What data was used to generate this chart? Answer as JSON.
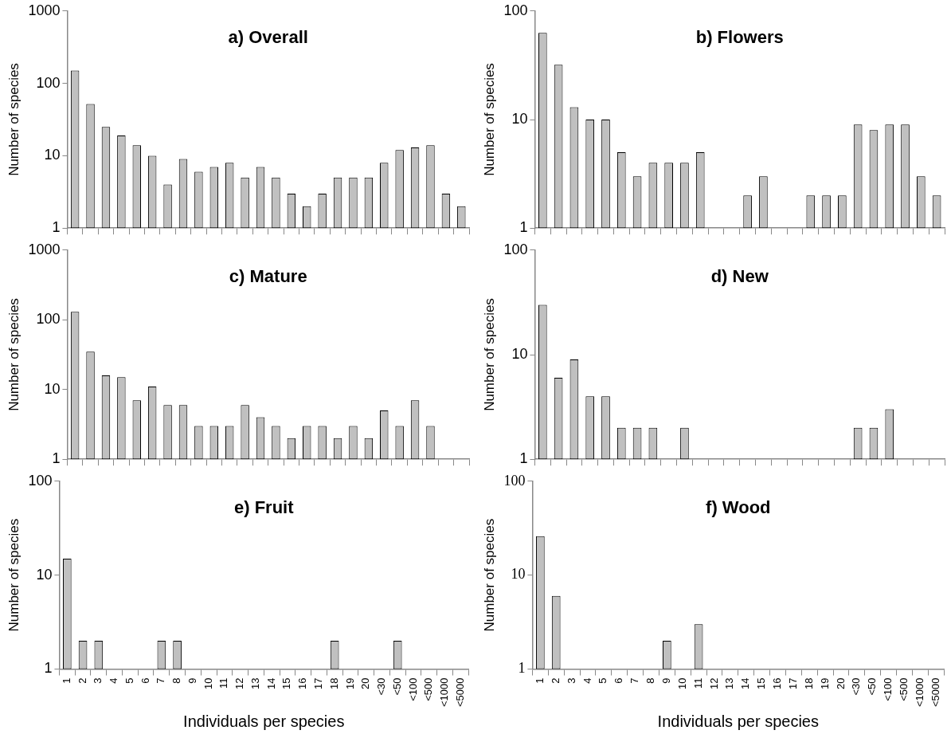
{
  "chart_data": [
    {
      "type": "bar",
      "title": "a) Overall",
      "ylabel": "Number of species",
      "categories": [
        null,
        null,
        null,
        null,
        null,
        null,
        null,
        null,
        null,
        null,
        null,
        null,
        null,
        null,
        null,
        null,
        null,
        null,
        null,
        null,
        null,
        null,
        null,
        null,
        null,
        null
      ],
      "values": [
        150,
        52,
        25,
        19,
        14,
        10,
        4,
        9,
        6,
        7,
        8,
        5,
        7,
        5,
        3,
        2,
        3,
        5,
        5,
        5,
        8,
        12,
        13,
        14,
        3,
        2
      ],
      "color": "#c0c0c0",
      "log": "y",
      "ylim": [
        1,
        1000
      ],
      "yticks": [
        1,
        10,
        100,
        1000
      ],
      "tick_labels": "y"
    },
    {
      "type": "bar",
      "title": "b) Flowers",
      "ylabel": "Number of species",
      "categories": [
        null,
        null,
        null,
        null,
        null,
        null,
        null,
        null,
        null,
        null,
        null,
        null,
        null,
        null,
        null,
        null,
        null,
        null,
        null,
        null,
        null,
        null,
        null,
        null,
        null,
        null
      ],
      "values": [
        63,
        32,
        13,
        10,
        10,
        5,
        3,
        4,
        4,
        4,
        5,
        null,
        null,
        2,
        3,
        null,
        null,
        2,
        2,
        2,
        9,
        8,
        9,
        9,
        3,
        2
      ],
      "color": "#c0c0c0",
      "log": "y",
      "ylim": [
        1,
        100
      ],
      "yticks": [
        1,
        10,
        100
      ],
      "tick_labels": "y"
    },
    {
      "type": "bar",
      "title": "c) Mature",
      "ylabel": "Number of species",
      "categories": [
        null,
        null,
        null,
        null,
        null,
        null,
        null,
        null,
        null,
        null,
        null,
        null,
        null,
        null,
        null,
        null,
        null,
        null,
        null,
        null,
        null,
        null,
        null,
        null,
        null,
        null
      ],
      "values": [
        130,
        35,
        16,
        15,
        7,
        11,
        6,
        6,
        3,
        3,
        3,
        6,
        4,
        3,
        2,
        3,
        3,
        2,
        3,
        2,
        5,
        3,
        7,
        3,
        null,
        null
      ],
      "color": "#c0c0c0",
      "log": "y",
      "ylim": [
        1,
        1000
      ],
      "yticks": [
        1,
        10,
        100,
        1000
      ],
      "tick_labels": "y"
    },
    {
      "type": "bar",
      "title": "d) New",
      "ylabel": "Number of species",
      "categories": [
        null,
        null,
        null,
        null,
        null,
        null,
        null,
        null,
        null,
        null,
        null,
        null,
        null,
        null,
        null,
        null,
        null,
        null,
        null,
        null,
        null,
        null,
        null,
        null,
        null,
        null
      ],
      "values": [
        30,
        6,
        9,
        4,
        4,
        2,
        2,
        2,
        null,
        2,
        null,
        null,
        null,
        null,
        null,
        null,
        null,
        null,
        null,
        null,
        2,
        2,
        3,
        null,
        null,
        null
      ],
      "color": "#c0c0c0",
      "log": "y",
      "ylim": [
        1,
        100
      ],
      "yticks": [
        1,
        10,
        100
      ],
      "tick_labels": "y"
    },
    {
      "type": "bar",
      "title": "e) Fruit",
      "xlabel": "Individuals per species",
      "ylabel": "Number of species",
      "categories": [
        "1",
        "2",
        "3",
        "4",
        "5",
        "6",
        "7",
        "8",
        "9",
        "10",
        "11",
        "12",
        "13",
        "14",
        "15",
        "16",
        "17",
        "18",
        "19",
        "20",
        "<30",
        "<50",
        "<100",
        "<500",
        "<1000",
        "<5000"
      ],
      "values": [
        15,
        2,
        2,
        null,
        null,
        null,
        2,
        2,
        null,
        null,
        null,
        null,
        null,
        null,
        null,
        null,
        null,
        2,
        null,
        null,
        null,
        2,
        null,
        null,
        null,
        null
      ],
      "color": "#c0c0c0",
      "log": "y",
      "ylim": [
        1,
        100
      ],
      "yticks": [
        1,
        10,
        100
      ]
    },
    {
      "type": "bar",
      "title": "f) Wood",
      "xlabel": "Individuals per species",
      "ylabel": "Number of species",
      "categories": [
        "1",
        "2",
        "3",
        "4",
        "5",
        "6",
        "7",
        "8",
        "9",
        "10",
        "11",
        "12",
        "13",
        "14",
        "15",
        "16",
        "17",
        "18",
        "19",
        "20",
        "<30",
        "<50",
        "<100",
        "<500",
        "<1000",
        "<5000"
      ],
      "values": [
        26,
        6,
        null,
        null,
        null,
        null,
        null,
        null,
        2,
        null,
        3,
        null,
        null,
        null,
        null,
        null,
        null,
        null,
        null,
        null,
        null,
        null,
        null,
        null,
        null,
        null
      ],
      "color": "#c0c0c0",
      "log": "y",
      "ylim": [
        1,
        100
      ],
      "yticks": [
        1,
        10,
        100
      ]
    }
  ]
}
